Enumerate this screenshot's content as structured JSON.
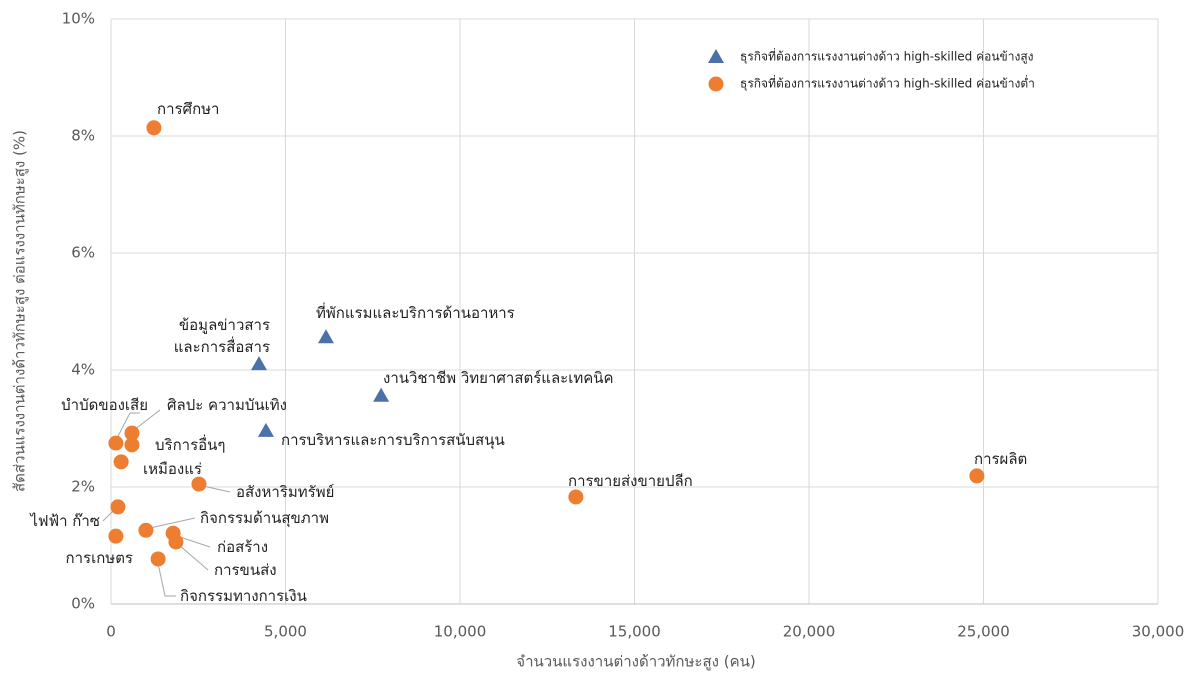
{
  "chart_data": {
    "type": "scatter",
    "x_label": "จำนวนแรงงานต่างด้าวทักษะสูง (คน)",
    "y_label": "สัดส่วนแรงงานต่างด้าวทักษะสูง ต่อแรงงานทักษะสูง (%)",
    "xlim": [
      0,
      30000
    ],
    "ylim": [
      0,
      10
    ],
    "xticks": [
      0,
      {
        "value": 5000,
        "label": "5,000"
      },
      {
        "value": 10000,
        "label": "10,000"
      },
      {
        "value": 15000,
        "label": "15,000"
      },
      {
        "value": 20000,
        "label": "20,000"
      },
      {
        "value": 25000,
        "label": "25,000"
      },
      {
        "value": 30000,
        "label": "30,000"
      }
    ],
    "yticks": [
      {
        "value": 0,
        "label": "0%"
      },
      {
        "value": 2,
        "label": "2%"
      },
      {
        "value": 4,
        "label": "4%"
      },
      {
        "value": 6,
        "label": "6%"
      },
      {
        "value": 8,
        "label": "8%"
      },
      {
        "value": 10,
        "label": "10%"
      }
    ],
    "grid": true,
    "legend": "upper right",
    "series": [
      {
        "name": "ธุรกิจที่ต้องการแรงงานต่างด้าว high-skilled ค่อนข้างสูง",
        "color": "#4a72a8",
        "marker": "triangle",
        "x": [
          4240,
          6160,
          7740,
          4440
        ],
        "values": [
          4.1,
          4.56,
          3.56,
          2.96
        ],
        "labels": [
          "ข้อมูลข่าวสาร\nและการสื่อสาร",
          "ที่พักแรมและบริการด้านอาหาร",
          "งานวิชาชีพ วิทยาศาสตร์และเทคนิค",
          "การบริหารและการบริการสนับสนุน"
        ]
      },
      {
        "name": "ธุรกิจที่ต้องการแรงงานต่างด้าว high-skilled ค่อนข้างต่ำ",
        "color": "#ed7d31",
        "marker": "circle",
        "x": [
          1230,
          24810,
          13320,
          140,
          600,
          600,
          290,
          2520,
          200,
          1000,
          1780,
          1860,
          140,
          1350
        ],
        "values": [
          8.14,
          2.19,
          1.83,
          2.75,
          2.92,
          2.72,
          2.43,
          2.05,
          1.66,
          1.26,
          1.21,
          1.06,
          1.16,
          0.77
        ],
        "labels": [
          "การศึกษา",
          "การผลิต",
          "การขายส่งขายปลีก",
          "บำบัดของเสีย",
          "ศิลปะ ความบันเทิง",
          "บริการอื่นๆ",
          "เหมืองแร่",
          "อสังหาริมทรัพย์",
          "ไฟฟ้า ก๊าซ",
          "กิจกรรมด้านสุขภาพ",
          "ก่อสร้าง",
          "การขนส่ง",
          "การเกษตร",
          "กิจกรรมทางการเงิน"
        ]
      }
    ]
  }
}
